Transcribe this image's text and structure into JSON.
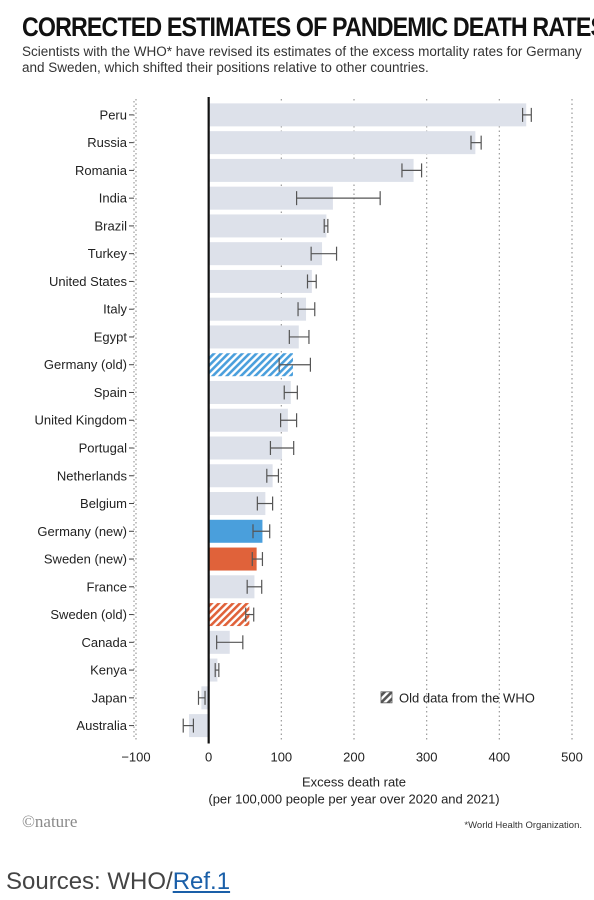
{
  "header": {
    "title": "CORRECTED ESTIMATES OF PANDEMIC DEATH RATES",
    "subtitle": "Scientists with the WHO* have revised its estimates of the excess mortality rates for Germany and Sweden, which shifted their positions relative to other countries."
  },
  "colors": {
    "default_bar": "#dde1ea",
    "germany_new": "#4a9fdc",
    "sweden_new": "#e0623a",
    "germany_old_hatch": "#4a9fdc",
    "sweden_old_hatch": "#e0623a",
    "zero_line": "#111111",
    "grid": "#9a9a9a"
  },
  "chart_data": {
    "type": "bar",
    "orientation": "horizontal",
    "categories": [
      "Peru",
      "Russia",
      "Romania",
      "India",
      "Brazil",
      "Turkey",
      "United States",
      "Italy",
      "Egypt",
      "Germany (old)",
      "Spain",
      "United Kingdom",
      "Portugal",
      "Netherlands",
      "Belgium",
      "Germany (new)",
      "Sweden (new)",
      "France",
      "Sweden (old)",
      "Canada",
      "Kenya",
      "Japan",
      "Australia"
    ],
    "values": [
      437,
      367,
      282,
      171,
      162,
      156,
      142,
      134,
      124,
      116,
      113,
      109,
      101,
      88,
      78,
      74,
      66,
      63,
      56,
      29,
      12,
      -10,
      -27
    ],
    "error_low": [
      432,
      361,
      266,
      121,
      159,
      141,
      136,
      123,
      111,
      97,
      104,
      99,
      85,
      80,
      67,
      61,
      60,
      53,
      51,
      11,
      9,
      -14,
      -35
    ],
    "error_high": [
      444,
      375,
      293,
      236,
      164,
      176,
      148,
      146,
      138,
      140,
      122,
      121,
      117,
      96,
      88,
      84,
      74,
      73,
      62,
      47,
      14,
      -5,
      -21
    ],
    "highlights": {
      "Germany (old)": "germany_old_hatch",
      "Germany (new)": "germany_new",
      "Sweden (new)": "sweden_new",
      "Sweden (old)": "sweden_old_hatch"
    },
    "xlim": [
      -100,
      500
    ],
    "xticks": [
      -100,
      0,
      100,
      200,
      300,
      400,
      500
    ],
    "xtick_labels": [
      "−100",
      "0",
      "100",
      "200",
      "300",
      "400",
      "500"
    ],
    "xlabel": "Excess death rate",
    "xlabel_sub": "(per 100,000 people per year over 2020 and 2021)",
    "grid": "dotted vertical",
    "legend": {
      "label": "Old data from the WHO",
      "placement": "bottom-right"
    }
  },
  "footer": {
    "brand": "©nature",
    "footnote": "*World Health Organization.",
    "sources_prefix": "Sources: WHO/",
    "sources_link": "Ref.1"
  }
}
